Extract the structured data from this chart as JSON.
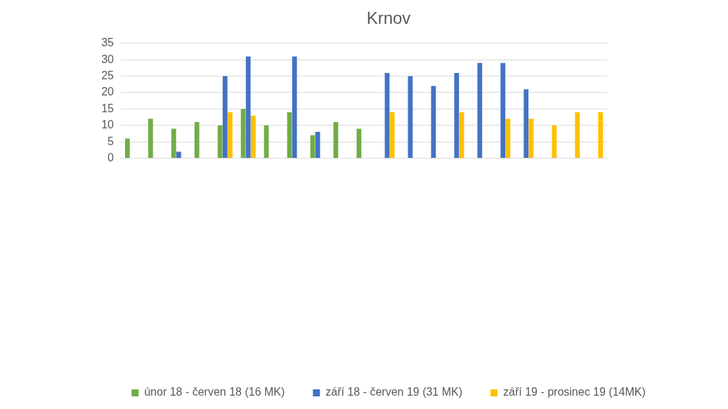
{
  "chart_data": {
    "type": "bar",
    "title": "Krnov",
    "categories": [
      null,
      null,
      null,
      null,
      null,
      null,
      null,
      null,
      null,
      null,
      null,
      null,
      null,
      null,
      null,
      null,
      null,
      null,
      null,
      null,
      null
    ],
    "series": [
      {
        "name": "únor 18 - červen 18 (16 MK)",
        "color": "#70ad47",
        "values": [
          6,
          12,
          9,
          11,
          10,
          15,
          10,
          14,
          7,
          11,
          9,
          null,
          null,
          null,
          null,
          null,
          null,
          null,
          null,
          null,
          null
        ]
      },
      {
        "name": "září 18 - červen 19 (31 MK)",
        "color": "#4472c4",
        "values": [
          null,
          null,
          2,
          null,
          25,
          31,
          null,
          31,
          8,
          null,
          null,
          26,
          25,
          22,
          26,
          29,
          29,
          21,
          null,
          null,
          null
        ]
      },
      {
        "name": "září 19 - prosinec 19 (14MK)",
        "color": "#ffc000",
        "values": [
          null,
          null,
          null,
          null,
          14,
          13,
          null,
          null,
          null,
          null,
          null,
          14,
          null,
          null,
          14,
          null,
          12,
          12,
          10,
          14,
          14
        ]
      }
    ],
    "ylim": [
      0,
      35
    ],
    "yticks": [
      0,
      5,
      10,
      15,
      20,
      25,
      30,
      35
    ],
    "grid": "y",
    "legend": "bottom"
  }
}
